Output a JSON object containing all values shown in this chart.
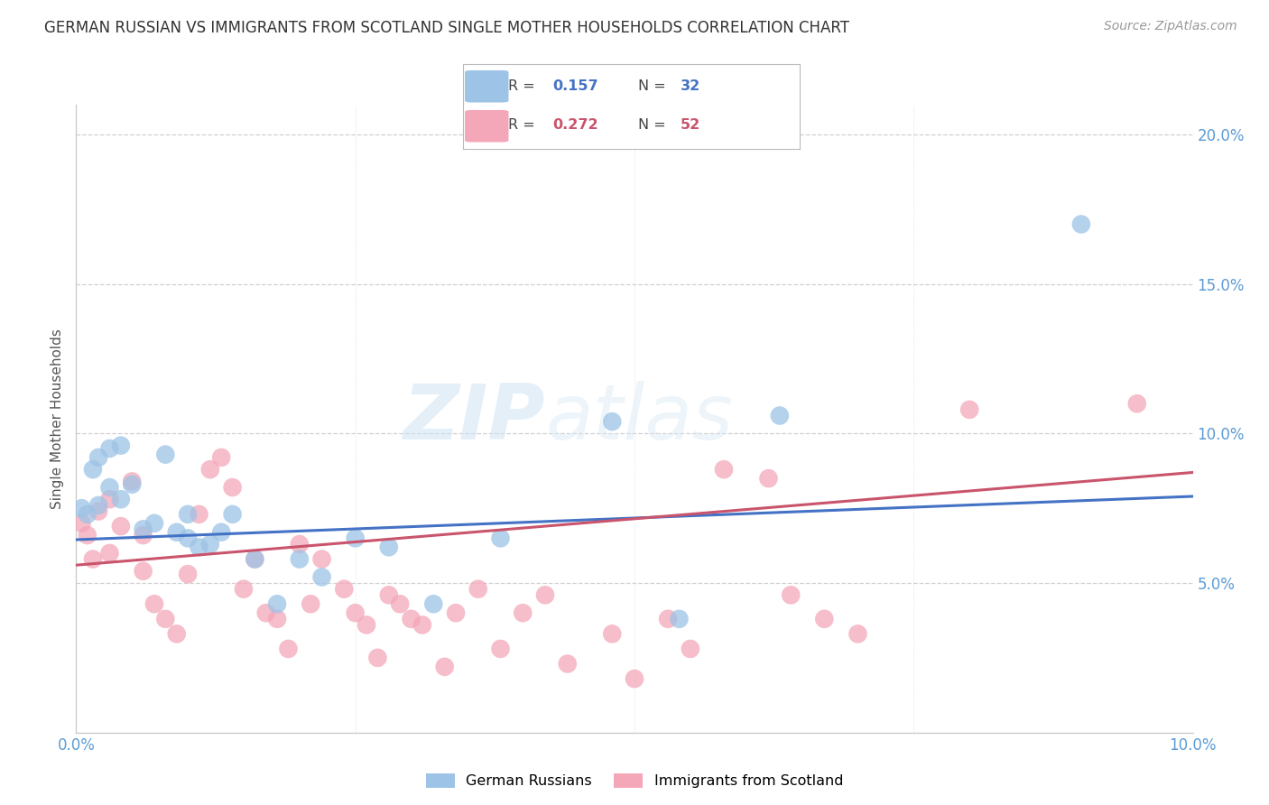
{
  "title": "GERMAN RUSSIAN VS IMMIGRANTS FROM SCOTLAND SINGLE MOTHER HOUSEHOLDS CORRELATION CHART",
  "source": "Source: ZipAtlas.com",
  "tick_color": "#5b9bd5",
  "ylabel": "Single Mother Households",
  "x_min": 0.0,
  "x_max": 0.1,
  "y_min": 0.0,
  "y_max": 0.21,
  "y_ticks": [
    0.05,
    0.1,
    0.15,
    0.2
  ],
  "x_ticks_show": [
    0.0,
    0.1
  ],
  "x_ticks_grid": [
    0.025,
    0.05,
    0.075
  ],
  "blue_R": 0.157,
  "blue_N": 32,
  "pink_R": 0.272,
  "pink_N": 52,
  "blue_color": "#9dc3e6",
  "pink_color": "#f4a7b9",
  "blue_line_color": "#4472c4",
  "pink_line_color": "#c9546c",
  "legend_label_blue": "German Russians",
  "legend_label_pink": "Immigrants from Scotland",
  "blue_scatter_x": [
    0.0005,
    0.001,
    0.0015,
    0.002,
    0.002,
    0.003,
    0.003,
    0.004,
    0.004,
    0.005,
    0.006,
    0.007,
    0.008,
    0.009,
    0.01,
    0.01,
    0.011,
    0.012,
    0.013,
    0.014,
    0.016,
    0.018,
    0.02,
    0.022,
    0.025,
    0.028,
    0.032,
    0.038,
    0.048,
    0.054,
    0.063,
    0.09
  ],
  "blue_scatter_y": [
    0.075,
    0.073,
    0.088,
    0.076,
    0.092,
    0.082,
    0.095,
    0.078,
    0.096,
    0.083,
    0.068,
    0.07,
    0.093,
    0.067,
    0.065,
    0.073,
    0.062,
    0.063,
    0.067,
    0.073,
    0.058,
    0.043,
    0.058,
    0.052,
    0.065,
    0.062,
    0.043,
    0.065,
    0.104,
    0.038,
    0.106,
    0.17
  ],
  "pink_scatter_x": [
    0.0005,
    0.001,
    0.0015,
    0.002,
    0.003,
    0.003,
    0.004,
    0.005,
    0.006,
    0.006,
    0.007,
    0.008,
    0.009,
    0.01,
    0.011,
    0.012,
    0.013,
    0.014,
    0.015,
    0.016,
    0.017,
    0.018,
    0.019,
    0.02,
    0.021,
    0.022,
    0.024,
    0.025,
    0.026,
    0.027,
    0.028,
    0.029,
    0.03,
    0.031,
    0.033,
    0.034,
    0.036,
    0.038,
    0.04,
    0.042,
    0.044,
    0.048,
    0.05,
    0.053,
    0.055,
    0.058,
    0.062,
    0.064,
    0.067,
    0.07,
    0.08,
    0.095
  ],
  "pink_scatter_y": [
    0.07,
    0.066,
    0.058,
    0.074,
    0.078,
    0.06,
    0.069,
    0.084,
    0.066,
    0.054,
    0.043,
    0.038,
    0.033,
    0.053,
    0.073,
    0.088,
    0.092,
    0.082,
    0.048,
    0.058,
    0.04,
    0.038,
    0.028,
    0.063,
    0.043,
    0.058,
    0.048,
    0.04,
    0.036,
    0.025,
    0.046,
    0.043,
    0.038,
    0.036,
    0.022,
    0.04,
    0.048,
    0.028,
    0.04,
    0.046,
    0.023,
    0.033,
    0.018,
    0.038,
    0.028,
    0.088,
    0.085,
    0.046,
    0.038,
    0.033,
    0.108,
    0.11
  ],
  "blue_trend_y_start": 0.0645,
  "blue_trend_y_end": 0.079,
  "pink_trend_y_start": 0.056,
  "pink_trend_y_end": 0.087,
  "watermark_line1": "ZIP",
  "watermark_line2": "atlas",
  "background_color": "#ffffff",
  "grid_color": "#d0d0d0",
  "title_fontsize": 12,
  "axis_label_fontsize": 11,
  "tick_fontsize": 12,
  "source_fontsize": 10
}
